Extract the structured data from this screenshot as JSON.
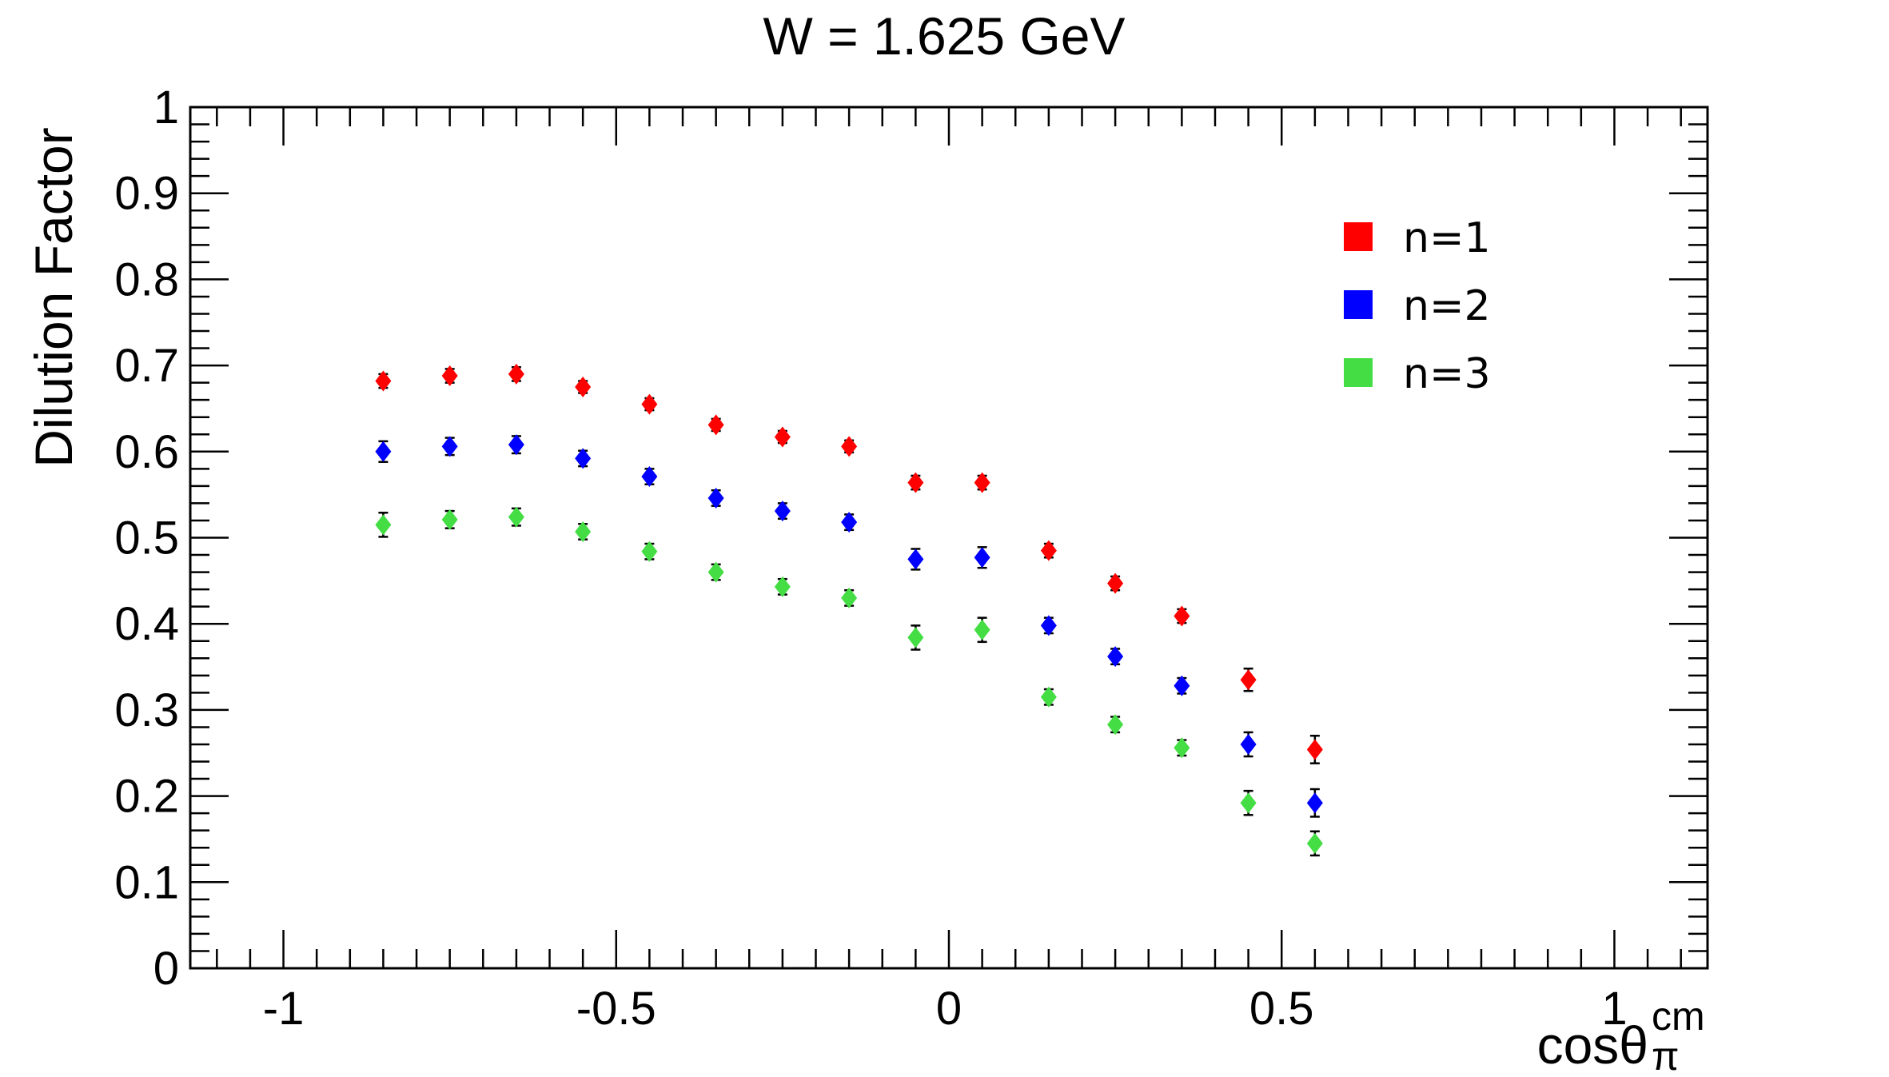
{
  "chart_data": {
    "type": "scatter",
    "title": "W = 1.625 GeV",
    "xlabel": "cosθ",
    "xlabel_sub": "π",
    "xlabel_sup": "cm",
    "ylabel": "Dilution Factor",
    "xlim": [
      -1.14,
      1.14
    ],
    "ylim": [
      0,
      1
    ],
    "x_ticks": [
      -1,
      -0.5,
      0,
      0.5,
      1
    ],
    "x_tick_labels": [
      "-1",
      "-0.5",
      "0",
      "0.5",
      "1"
    ],
    "y_ticks": [
      0,
      0.1,
      0.2,
      0.3,
      0.4,
      0.5,
      0.6,
      0.7,
      0.8,
      0.9,
      1
    ],
    "y_tick_labels": [
      "0",
      "0.1",
      "0.2",
      "0.3",
      "0.4",
      "0.5",
      "0.6",
      "0.7",
      "0.8",
      "0.9",
      "1"
    ],
    "grid": false,
    "legend_position": "top-right",
    "x": [
      -0.85,
      -0.75,
      -0.65,
      -0.55,
      -0.45,
      -0.35,
      -0.25,
      -0.15,
      -0.05,
      0.05,
      0.15,
      0.25,
      0.35,
      0.45,
      0.55
    ],
    "series": [
      {
        "name": "n=1",
        "color": "#ff0000",
        "values": [
          0.682,
          0.688,
          0.69,
          0.675,
          0.655,
          0.631,
          0.617,
          0.606,
          0.564,
          0.564,
          0.485,
          0.447,
          0.409,
          0.335,
          0.254
        ],
        "errors": [
          0.008,
          0.008,
          0.008,
          0.007,
          0.007,
          0.007,
          0.007,
          0.007,
          0.008,
          0.008,
          0.008,
          0.008,
          0.008,
          0.013,
          0.016
        ]
      },
      {
        "name": "n=2",
        "color": "#0000ff",
        "values": [
          0.6,
          0.606,
          0.608,
          0.592,
          0.571,
          0.546,
          0.531,
          0.518,
          0.475,
          0.477,
          0.398,
          0.362,
          0.328,
          0.26,
          0.192
        ],
        "errors": [
          0.012,
          0.01,
          0.01,
          0.009,
          0.009,
          0.009,
          0.009,
          0.009,
          0.012,
          0.012,
          0.009,
          0.009,
          0.009,
          0.014,
          0.016
        ]
      },
      {
        "name": "n=3",
        "color": "#44dd44",
        "values": [
          0.515,
          0.521,
          0.524,
          0.507,
          0.484,
          0.46,
          0.443,
          0.43,
          0.384,
          0.393,
          0.315,
          0.283,
          0.256,
          0.192,
          0.145
        ],
        "errors": [
          0.014,
          0.01,
          0.01,
          0.009,
          0.009,
          0.009,
          0.009,
          0.009,
          0.014,
          0.014,
          0.009,
          0.009,
          0.009,
          0.014,
          0.014
        ]
      }
    ]
  }
}
